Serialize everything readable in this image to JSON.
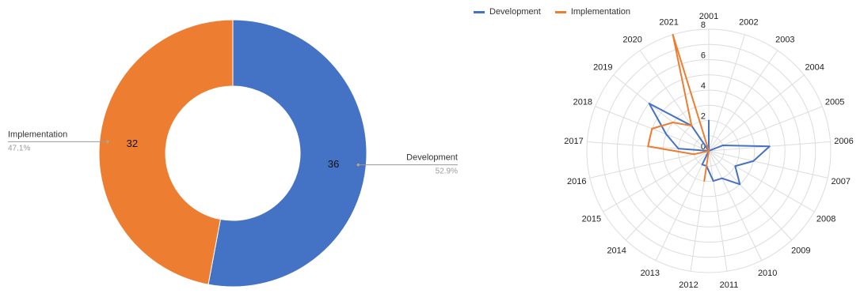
{
  "colors": {
    "development": "#4472c4",
    "implementation": "#ed7d31"
  },
  "chart_data": [
    {
      "type": "pie",
      "donut": true,
      "labels": [
        "Development",
        "Implementation"
      ],
      "values": [
        36,
        32
      ],
      "percents": [
        "52.9%",
        "47.1%"
      ],
      "value_labels": [
        "36",
        "32"
      ],
      "colors": [
        "#4472c4",
        "#ed7d31"
      ]
    },
    {
      "type": "radar",
      "categories": [
        "2001",
        "2002",
        "2003",
        "2004",
        "2005",
        "2006",
        "2007",
        "2008",
        "2009",
        "2010",
        "2011",
        "2012",
        "2013",
        "2014",
        "2015",
        "2016",
        "2017",
        "2018",
        "2019",
        "2020",
        "2021"
      ],
      "radial_ticks": [
        "0",
        "2",
        "4",
        "6",
        "8"
      ],
      "rlim": [
        0,
        8
      ],
      "grid": true,
      "legend": "top-left",
      "series": [
        {
          "name": "Development",
          "color": "#4472c4",
          "values": [
            2,
            0,
            0,
            0,
            1,
            4,
            3,
            2,
            3,
            2,
            2,
            1,
            1,
            0,
            0,
            0,
            2,
            3,
            5,
            2,
            0
          ]
        },
        {
          "name": "Implementation",
          "color": "#ed7d31",
          "values": [
            0,
            0,
            0,
            0,
            0,
            0,
            0,
            0,
            0,
            0,
            0,
            2,
            0,
            0,
            0,
            1,
            4,
            4,
            3,
            2,
            8
          ]
        }
      ]
    }
  ]
}
